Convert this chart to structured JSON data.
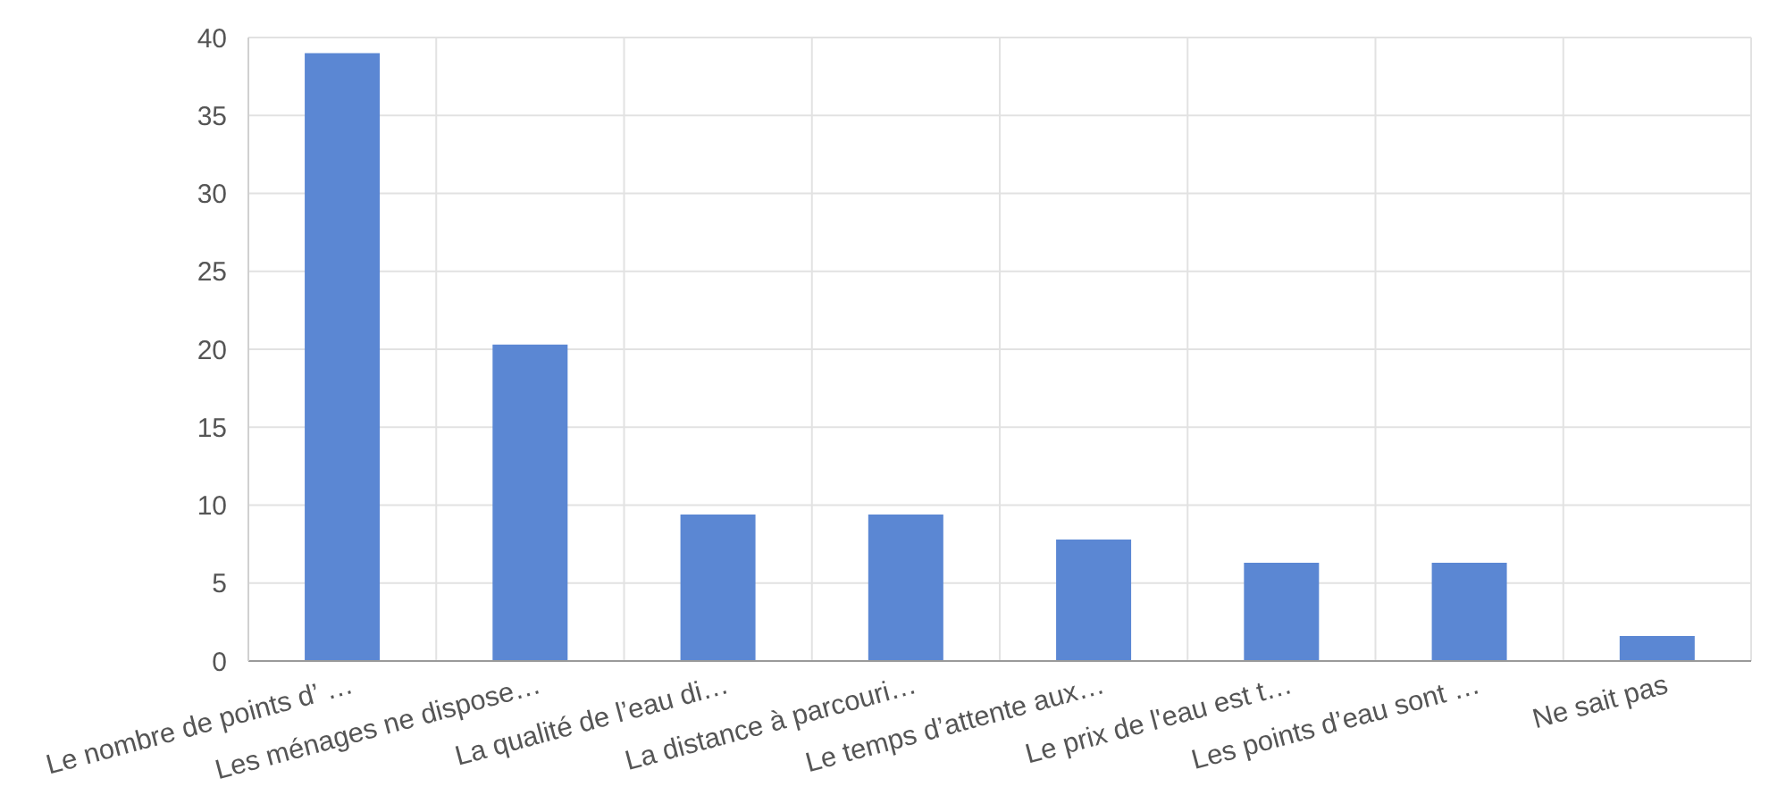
{
  "chart_data": {
    "type": "bar",
    "categories": [
      "Le nombre de points d’ …",
      "Les ménages ne dispose…",
      "La qualité de l’eau di…",
      "La distance à parcouri…",
      "Le temps d’attente aux…",
      "Le prix de l'eau est t…",
      "Les points d’eau sont …",
      "Ne sait pas"
    ],
    "values": [
      39,
      20.3,
      9.4,
      9.4,
      7.8,
      6.3,
      6.3,
      1.6
    ],
    "color": "#5b87d3",
    "ylim": [
      0,
      40
    ],
    "yticks": [
      0,
      5,
      10,
      15,
      20,
      25,
      30,
      35,
      40
    ],
    "grid": true
  }
}
